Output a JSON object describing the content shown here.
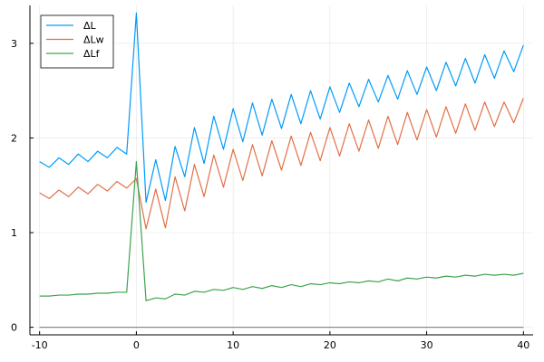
{
  "chart_data": {
    "type": "line",
    "title": "",
    "xlabel": "",
    "ylabel": "",
    "xlim": [
      -11,
      41
    ],
    "ylim": [
      -0.08,
      3.4
    ],
    "xticks": [
      -10,
      0,
      10,
      20,
      30,
      40
    ],
    "yticks": [
      0,
      1,
      2,
      3
    ],
    "grid": true,
    "legend": {
      "position": "top-left",
      "entries": [
        "ΔL",
        "ΔLw",
        "ΔLf"
      ]
    },
    "x": [
      -10,
      -9,
      -8,
      -7,
      -6,
      -5,
      -4,
      -3,
      -2,
      -1,
      0,
      1,
      2,
      3,
      4,
      5,
      6,
      7,
      8,
      9,
      10,
      11,
      12,
      13,
      14,
      15,
      16,
      17,
      18,
      19,
      20,
      21,
      22,
      23,
      24,
      25,
      26,
      27,
      28,
      29,
      30,
      31,
      32,
      33,
      34,
      35,
      36,
      37,
      38,
      39,
      40
    ],
    "series": [
      {
        "name": "ΔL",
        "color": "#009AFA",
        "values": [
          1.75,
          1.69,
          1.79,
          1.72,
          1.83,
          1.75,
          1.86,
          1.79,
          1.9,
          1.83,
          3.32,
          1.32,
          1.77,
          1.34,
          1.91,
          1.59,
          2.11,
          1.73,
          2.23,
          1.88,
          2.31,
          1.96,
          2.37,
          2.03,
          2.41,
          2.1,
          2.46,
          2.15,
          2.5,
          2.2,
          2.54,
          2.27,
          2.58,
          2.33,
          2.62,
          2.38,
          2.66,
          2.41,
          2.71,
          2.46,
          2.75,
          2.5,
          2.8,
          2.55,
          2.84,
          2.58,
          2.88,
          2.63,
          2.92,
          2.7,
          2.98
        ]
      },
      {
        "name": "ΔLw",
        "color": "#E26F46",
        "values": [
          1.42,
          1.36,
          1.45,
          1.38,
          1.48,
          1.41,
          1.51,
          1.44,
          1.54,
          1.47,
          1.57,
          1.04,
          1.46,
          1.05,
          1.59,
          1.23,
          1.72,
          1.38,
          1.82,
          1.48,
          1.88,
          1.55,
          1.93,
          1.6,
          1.97,
          1.66,
          2.02,
          1.71,
          2.06,
          1.76,
          2.11,
          1.81,
          2.15,
          1.86,
          2.19,
          1.89,
          2.23,
          1.93,
          2.27,
          1.98,
          2.3,
          2.01,
          2.33,
          2.05,
          2.36,
          2.08,
          2.38,
          2.12,
          2.38,
          2.16,
          2.42
        ]
      },
      {
        "name": "ΔLf",
        "color": "#3DA44D",
        "values": [
          0.33,
          0.33,
          0.34,
          0.34,
          0.35,
          0.35,
          0.36,
          0.36,
          0.37,
          0.37,
          1.75,
          0.28,
          0.31,
          0.3,
          0.35,
          0.34,
          0.38,
          0.37,
          0.4,
          0.39,
          0.42,
          0.4,
          0.43,
          0.41,
          0.44,
          0.42,
          0.45,
          0.43,
          0.46,
          0.45,
          0.47,
          0.46,
          0.48,
          0.47,
          0.49,
          0.48,
          0.51,
          0.49,
          0.52,
          0.51,
          0.53,
          0.52,
          0.54,
          0.53,
          0.55,
          0.54,
          0.56,
          0.55,
          0.56,
          0.55,
          0.57
        ]
      },
      {
        "name": "",
        "color": "#8A8A8A",
        "values": [
          0,
          0,
          0,
          0,
          0,
          0,
          0,
          0,
          0,
          0,
          0,
          0,
          0,
          0,
          0,
          0,
          0,
          0,
          0,
          0,
          0,
          0,
          0,
          0,
          0,
          0,
          0,
          0,
          0,
          0,
          0,
          0,
          0,
          0,
          0,
          0,
          0,
          0,
          0,
          0,
          0,
          0,
          0,
          0,
          0,
          0,
          0,
          0,
          0,
          0,
          0
        ]
      }
    ]
  }
}
